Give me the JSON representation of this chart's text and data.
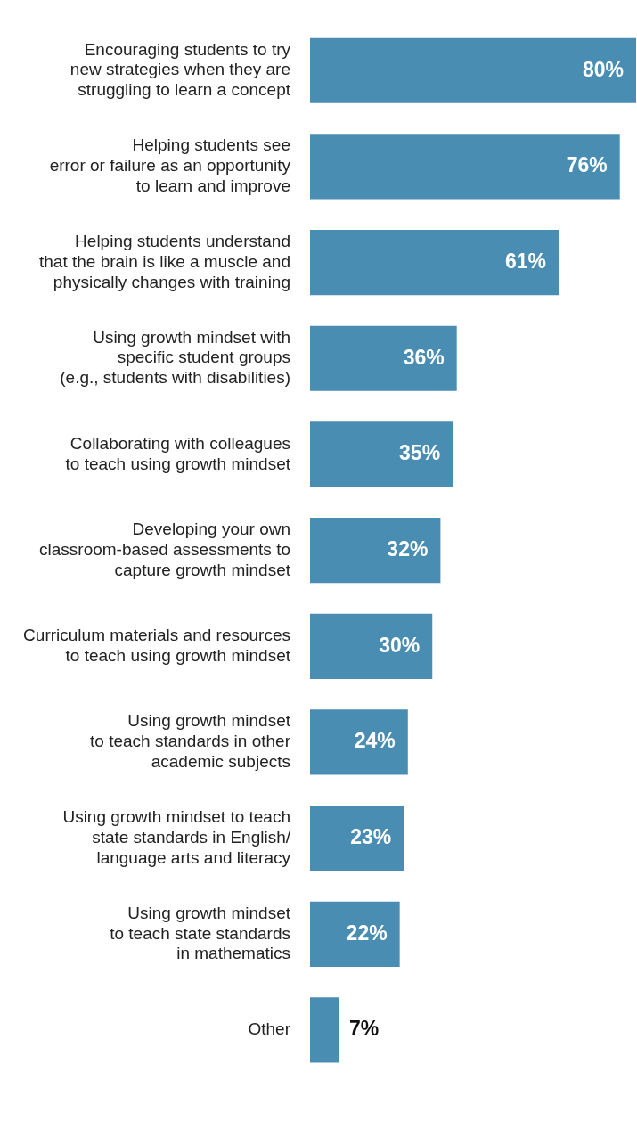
{
  "chart_data": {
    "type": "bar",
    "orientation": "horizontal",
    "legend": false,
    "color": "#4a8db3",
    "categories": [
      "Encouraging students to try\nnew strategies when they are\nstruggling to learn a concept",
      "Helping students see\nerror or failure as an opportunity\nto learn and improve",
      "Helping students understand\nthat the brain is like a muscle and\nphysically changes with training",
      "Using growth mindset with\nspecific student groups\n(e.g., students with disabilities)",
      "Collaborating with colleagues\nto teach using growth mindset",
      "Developing your own\nclassroom-based assessments to\ncapture growth mindset",
      "Curriculum materials and resources\nto teach using growth mindset",
      "Using growth mindset\nto teach standards in other\nacademic subjects",
      "Using growth mindset to teach\nstate standards in English/\nlanguage arts and literacy",
      "Using growth mindset\nto teach state standards\nin mathematics",
      "Other"
    ],
    "values": [
      80,
      76,
      61,
      36,
      35,
      32,
      30,
      24,
      23,
      22,
      7
    ],
    "value_labels": [
      "80%",
      "76%",
      "61%",
      "36%",
      "35%",
      "32%",
      "30%",
      "24%",
      "23%",
      "22%",
      "7%"
    ]
  }
}
